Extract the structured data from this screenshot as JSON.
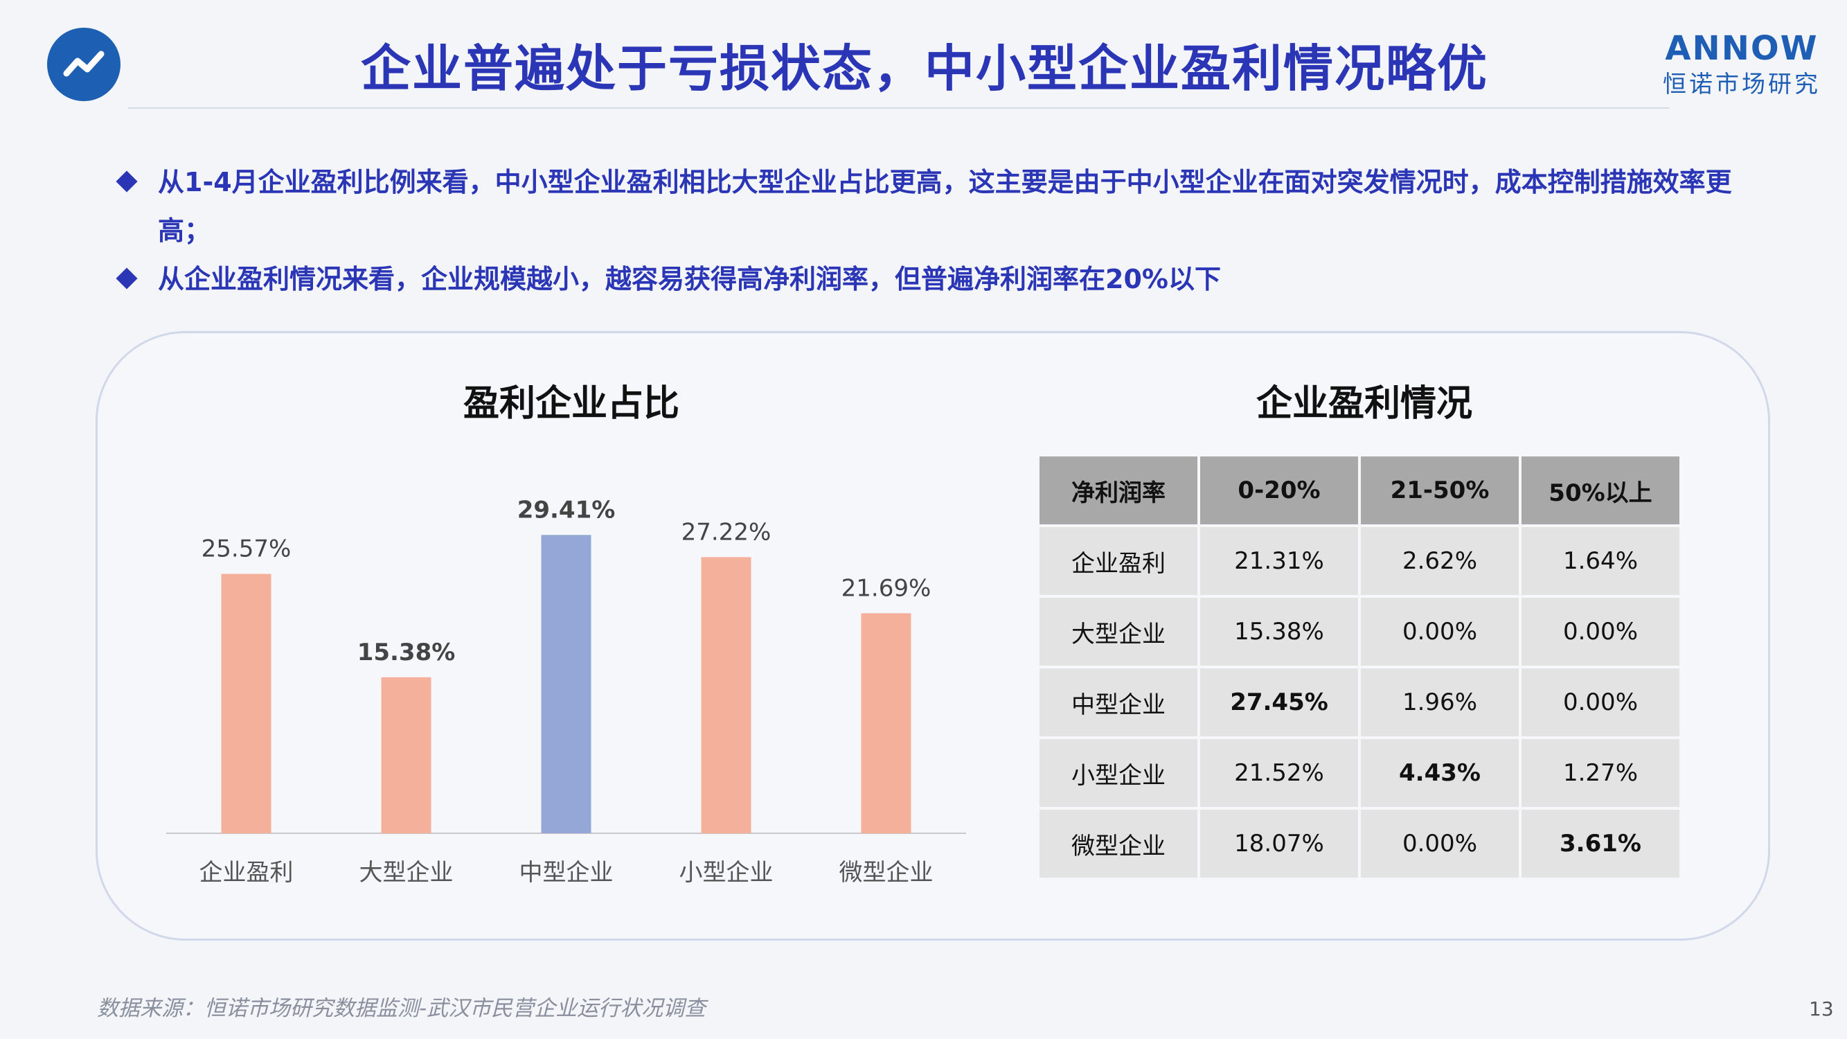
{
  "header": {
    "title": "企业普遍处于亏损状态，中小型企业盈利情况略优",
    "brand_en": "ANNOW",
    "brand_cn": "恒诺市场研究",
    "icon": "trend-line-icon"
  },
  "bullets": [
    "从1-4月企业盈利比例来看，中小型企业盈利相比大型企业占比更高，这主要是由于中小型企业在面对突发情况时，成本控制措施效率更高；",
    "从企业盈利情况来看，企业规模越小，越容易获得高净利润率，但普遍净利润率在20%以下"
  ],
  "chart_title": "盈利企业占比",
  "chart_data": {
    "type": "bar",
    "categories": [
      "企业盈利",
      "大型企业",
      "中型企业",
      "小型企业",
      "微型企业"
    ],
    "values": [
      25.57,
      15.38,
      29.41,
      27.22,
      21.69
    ],
    "value_labels": [
      "25.57%",
      "15.38%",
      "29.41%",
      "27.22%",
      "21.69%"
    ],
    "bold_labels": [
      false,
      true,
      true,
      false,
      false
    ],
    "colors": [
      "#f4b09a",
      "#f4b09a",
      "#94a7d6",
      "#f4b09a",
      "#f4b09a"
    ],
    "ylim": [
      0,
      35
    ],
    "title": "盈利企业占比",
    "xlabel": "",
    "ylabel": ""
  },
  "table": {
    "title": "企业盈利情况",
    "headers": [
      "净利润率",
      "0-20%",
      "21-50%",
      "50%以上"
    ],
    "rows": [
      [
        "企业盈利",
        "21.31%",
        "2.62%",
        "1.64%"
      ],
      [
        "大型企业",
        "15.38%",
        "0.00%",
        "0.00%"
      ],
      [
        "中型企业",
        "27.45%",
        "1.96%",
        "0.00%"
      ],
      [
        "小型企业",
        "21.52%",
        "4.43%",
        "1.27%"
      ],
      [
        "微型企业",
        "18.07%",
        "0.00%",
        "3.61%"
      ]
    ]
  },
  "footer": {
    "source": "数据来源：恒诺市场研究数据监测-武汉市民营企业运行状况调查",
    "page": "13"
  }
}
